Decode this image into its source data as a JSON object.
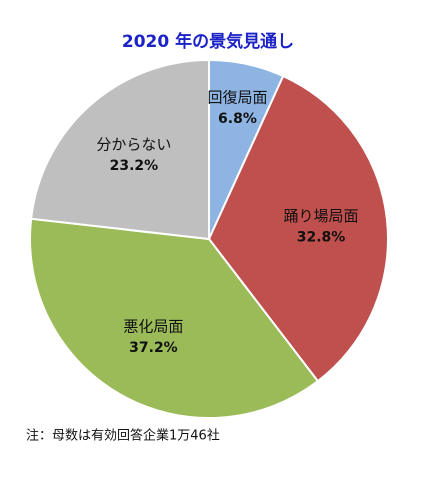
{
  "chart_data": {
    "type": "pie",
    "title": "2020 年の景気見通し",
    "categories": [
      "回復局面",
      "踊り場局面",
      "悪化局面",
      "分からない"
    ],
    "values": [
      6.8,
      32.8,
      37.2,
      23.2
    ],
    "value_labels": [
      "6.8%",
      "32.8%",
      "37.2%",
      "23.2%"
    ],
    "colors": [
      "#8db4e2",
      "#c0504d",
      "#9bbb59",
      "#bfbfbf"
    ],
    "note": "注：母数は有効回答企業1万46社"
  }
}
